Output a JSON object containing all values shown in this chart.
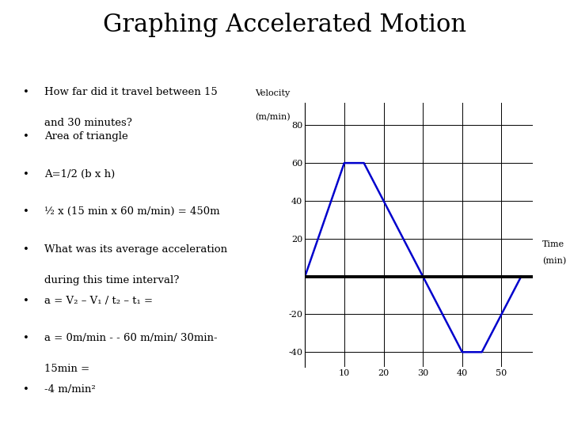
{
  "title": "Graphing Accelerated Motion",
  "title_fontsize": 22,
  "title_font": "serif",
  "background_color": "#ffffff",
  "bullet_points": [
    {
      "text": "How far did it travel between 15\nand 30 minutes?",
      "superscript": null
    },
    {
      "text": "Area of triangle",
      "superscript": null
    },
    {
      "text": "A=1/2 (b x h)",
      "superscript": null
    },
    {
      "text": "½ x (15 min x 60 m/min) = 450m",
      "superscript": null
    },
    {
      "text": "What was its average acceleration\nduring this time interval?",
      "superscript": null
    },
    {
      "text": "a = V₂ – V₁ / t₂ – t₁ =",
      "superscript": null
    },
    {
      "text": "a = 0m/min - - 60 m/min/ 30min-\n15min =",
      "superscript": null
    },
    {
      "text": "-4 m/min²",
      "superscript": null
    }
  ],
  "graph_x": [
    0,
    10,
    15,
    30,
    40,
    45,
    55
  ],
  "graph_y": [
    0,
    60,
    60,
    0,
    -40,
    -40,
    0
  ],
  "line_color": "#0000cc",
  "line_width": 1.8,
  "ylabel_line1": "Velocity",
  "ylabel_line2": "(m/min)",
  "xlabel_line1": "Time",
  "xlabel_line2": "(min)",
  "xlim": [
    0,
    58
  ],
  "ylim": [
    -48,
    92
  ],
  "xticks": [
    10,
    20,
    30,
    40,
    50
  ],
  "yticks": [
    -40,
    -20,
    0,
    20,
    40,
    60,
    80
  ],
  "grid_color": "#000000",
  "bullet_fontsize": 9.5,
  "bullet_font": "serif",
  "bullet_color": "#000000"
}
